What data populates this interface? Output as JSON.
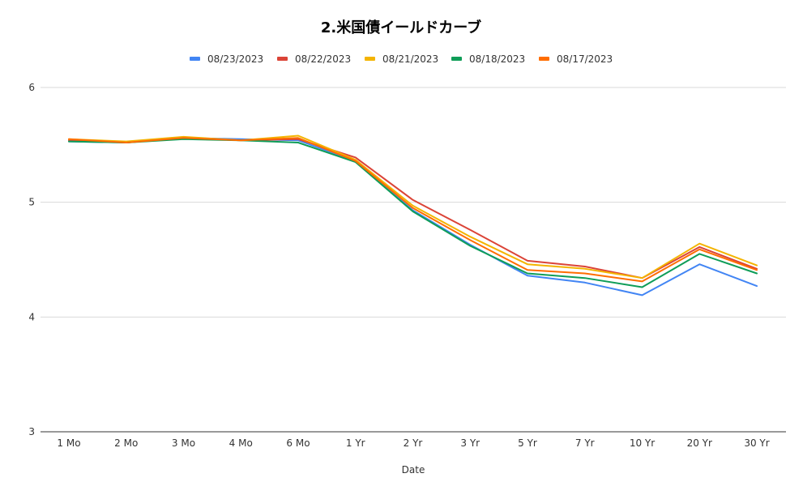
{
  "chart_data": {
    "type": "line",
    "title": "2.米国債イールドカーブ",
    "xlabel": "Date",
    "ylabel": "",
    "ylim": [
      3,
      6
    ],
    "yticks": [
      "3",
      "4",
      "5",
      "6"
    ],
    "grid": true,
    "legend_position": "top",
    "categories": [
      "1 Mo",
      "2 Mo",
      "3 Mo",
      "4 Mo",
      "6 Mo",
      "1 Yr",
      "2 Yr",
      "3 Yr",
      "5 Yr",
      "7 Yr",
      "10 Yr",
      "20 Yr",
      "30 Yr"
    ],
    "series": [
      {
        "name": "08/23/2023",
        "color": "#4285f4",
        "values": [
          5.53,
          5.52,
          5.56,
          5.55,
          5.54,
          5.36,
          4.93,
          4.63,
          4.36,
          4.3,
          4.19,
          4.46,
          4.27
        ]
      },
      {
        "name": "08/22/2023",
        "color": "#db4437",
        "values": [
          5.54,
          5.52,
          5.56,
          5.54,
          5.55,
          5.39,
          5.02,
          4.76,
          4.49,
          4.44,
          4.34,
          4.61,
          4.42
        ]
      },
      {
        "name": "08/21/2023",
        "color": "#f4b400",
        "values": [
          5.55,
          5.53,
          5.57,
          5.54,
          5.58,
          5.37,
          4.97,
          4.7,
          4.46,
          4.42,
          4.34,
          4.64,
          4.45
        ]
      },
      {
        "name": "08/18/2023",
        "color": "#0f9d58",
        "values": [
          5.53,
          5.52,
          5.55,
          5.54,
          5.52,
          5.35,
          4.92,
          4.62,
          4.38,
          4.34,
          4.26,
          4.55,
          4.38
        ]
      },
      {
        "name": "08/17/2023",
        "color": "#ff6d01",
        "values": [
          5.55,
          5.52,
          5.56,
          5.54,
          5.56,
          5.36,
          4.95,
          4.67,
          4.41,
          4.38,
          4.31,
          4.59,
          4.41
        ]
      }
    ]
  }
}
